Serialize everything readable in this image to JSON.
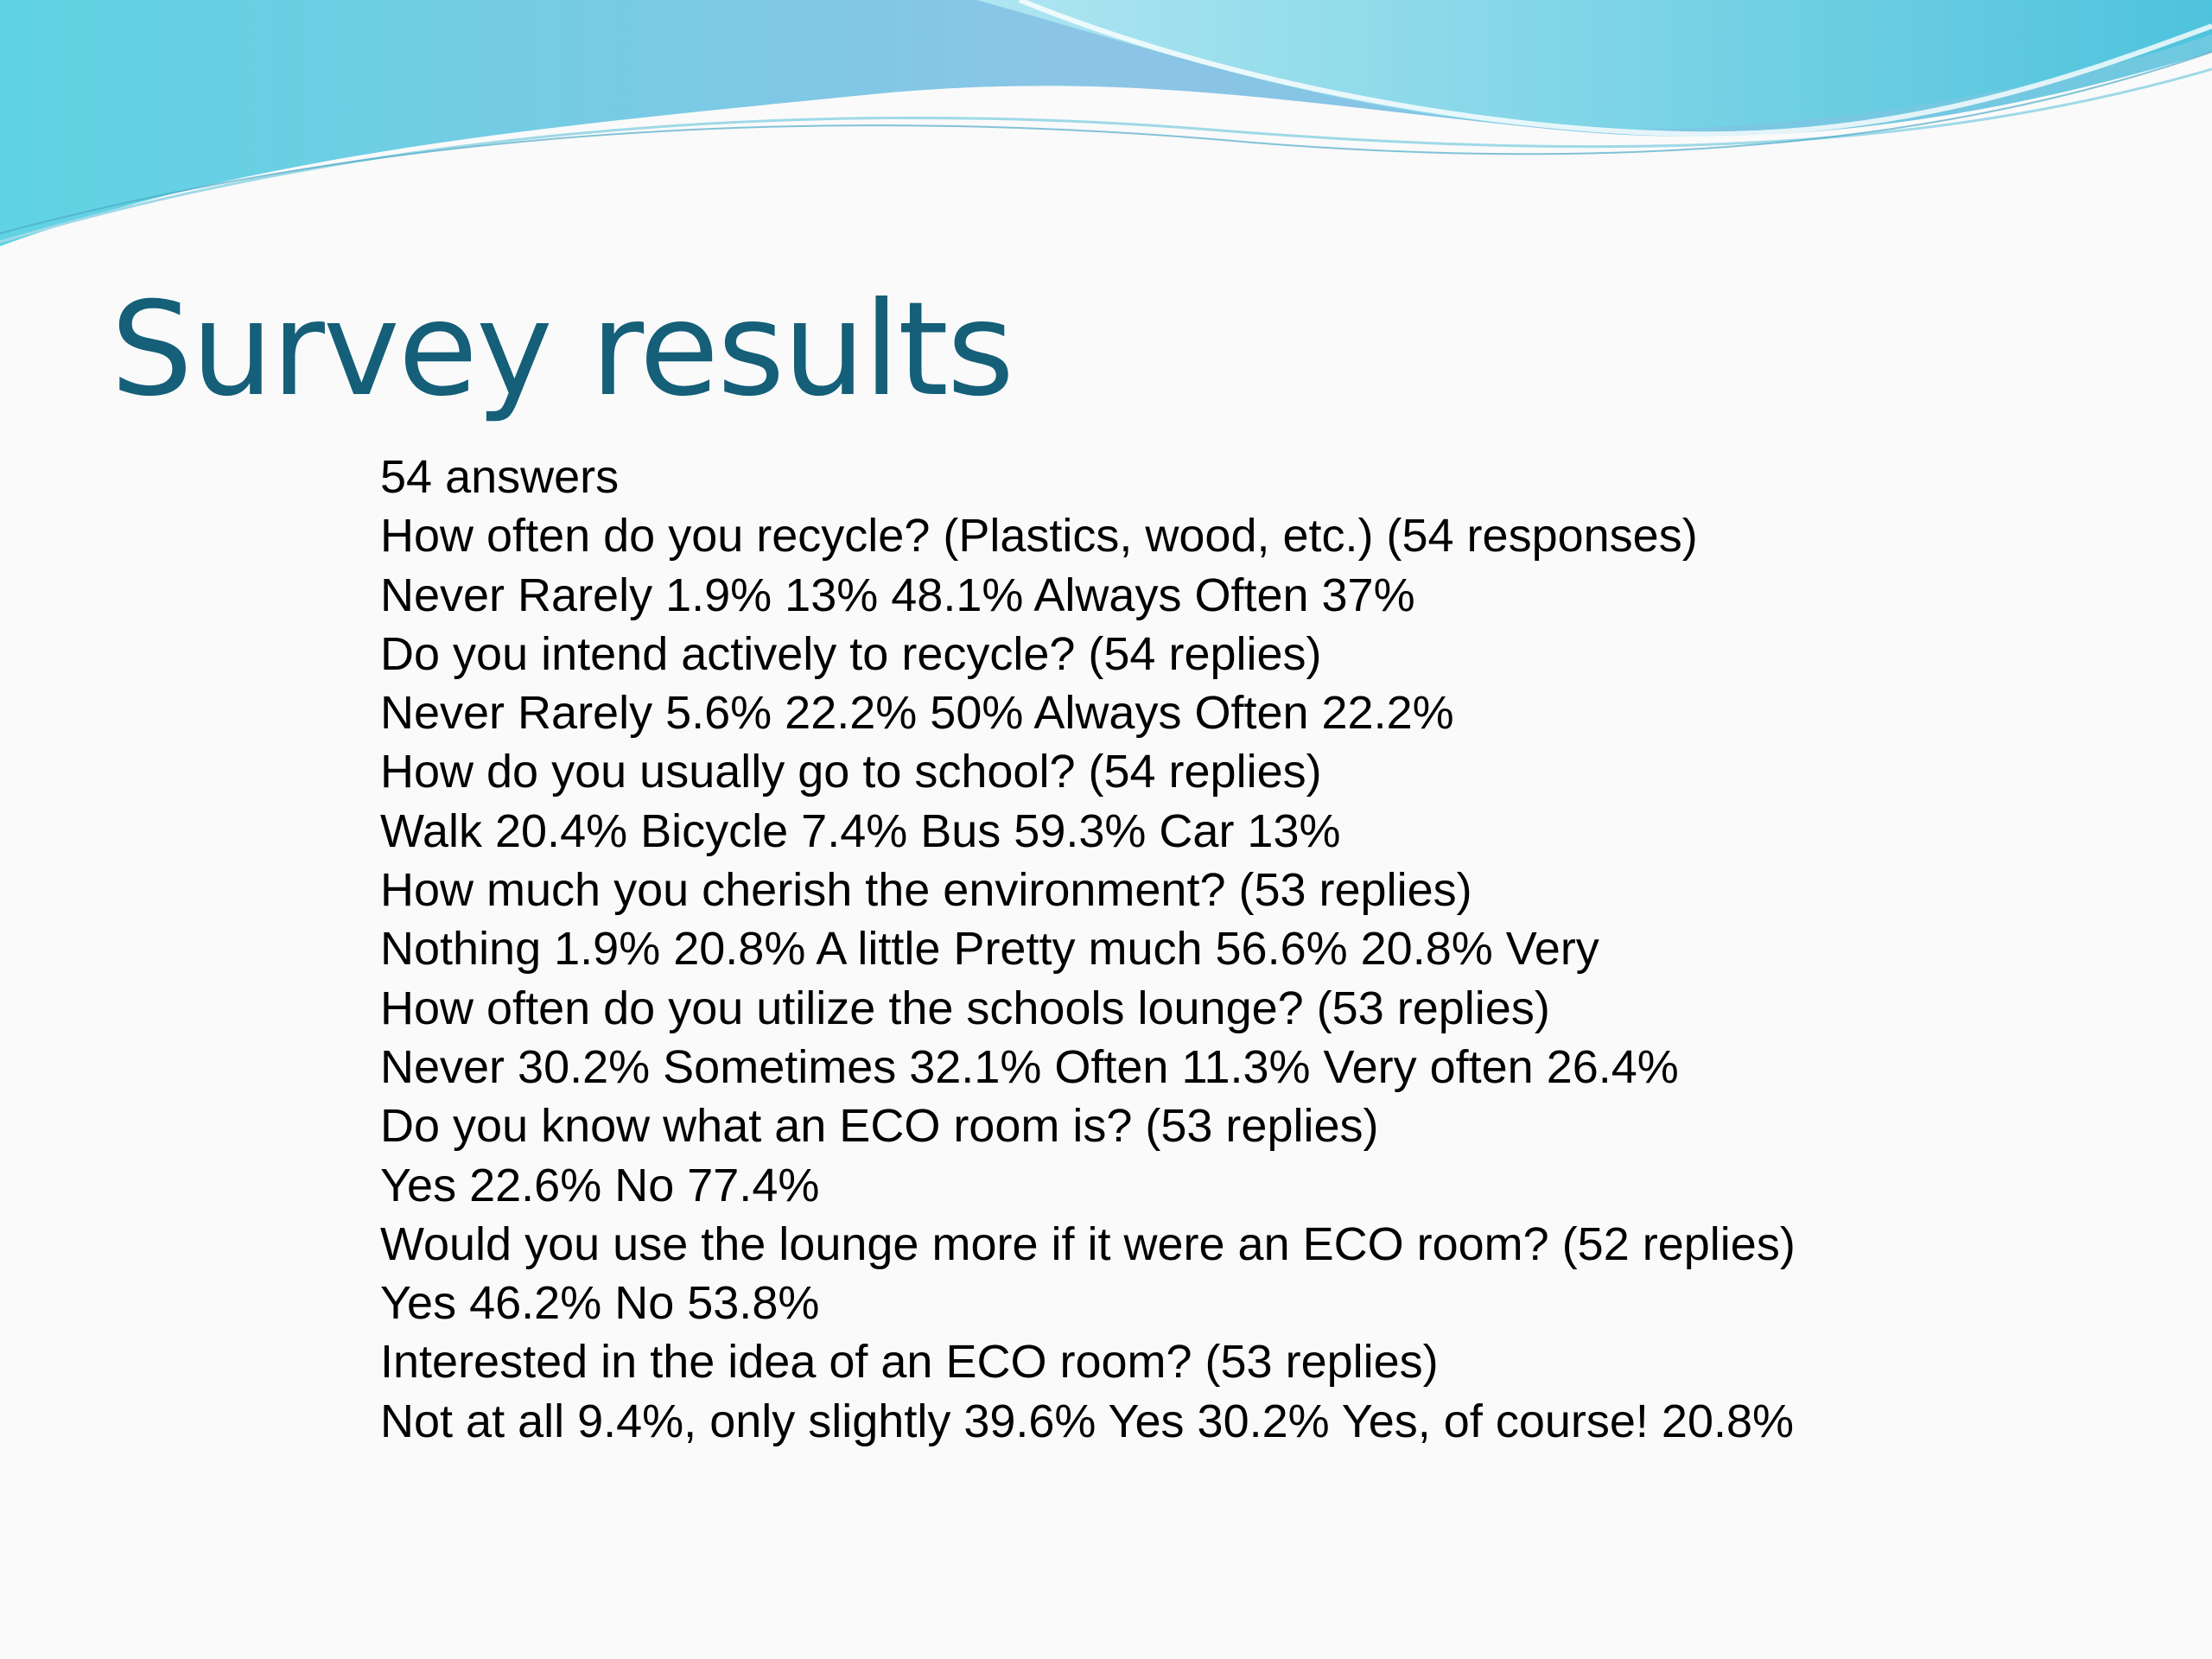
{
  "title": "Survey results",
  "body": {
    "lines": [
      "54 answers",
      "How often do you recycle? (Plastics, wood, etc.) (54 responses)",
      "Never Rarely 1.9% 13% 48.1% Always Often 37%",
      "Do you intend actively to recycle? (54 replies)",
      "Never Rarely 5.6% 22.2% 50% Always Often 22.2%",
      "How do you usually go to school? (54 replies)",
      "Walk 20.4% Bicycle 7.4% Bus 59.3% Car 13%",
      "How much you cherish the environment? (53 replies)",
      "Nothing 1.9% 20.8% A little Pretty much 56.6% 20.8% Very",
      "How often do you utilize the schools lounge? (53 replies)",
      "Never 30.2% Sometimes 32.1% Often 11.3% Very often 26.4%",
      "Do you know what an ECO room is? (53 replies)",
      "Yes 22.6% No 77.4%",
      "Would you use the lounge more if it were an ECO room? (52 replies)",
      "Yes 46.2% No 53.8%",
      "Interested in the idea of an ECO room? (53 replies)",
      "Not at all 9.4%, only slightly 39.6% Yes 30.2% Yes, of course! 20.8%"
    ]
  }
}
